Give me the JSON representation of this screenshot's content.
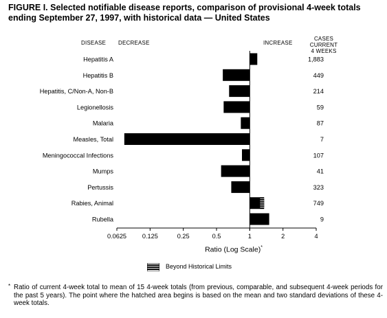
{
  "title_lines": [
    "FIGURE I. Selected notifiable disease reports, comparison of provisional 4-week totals",
    "ending September 27, 1997, with historical data — United States"
  ],
  "headers": {
    "disease": "DISEASE",
    "decrease": "DECREASE",
    "increase": "INCREASE",
    "cases": "CASES CURRENT",
    "cases2": "4 WEEKS"
  },
  "legend_label": "Beyond Historical Limits",
  "footnote_mark": "*",
  "footnote": "Ratio of current 4-week total to mean of 15 4-week totals (from previous, comparable, and subsequent 4-week periods for the past 5 years). The point where the hatched area begins is based on the mean and two standard deviations of these 4-week totals.",
  "colors": {
    "bar": "#000000",
    "background": "#ffffff"
  },
  "chart_data": {
    "type": "bar",
    "orientation": "horizontal",
    "x_scale": "log2",
    "xlabel": "Ratio (Log Scale)",
    "xlabel_mark": "*",
    "xlim": [
      0.0625,
      4
    ],
    "reference": 1,
    "x_ticks": [
      0.0625,
      0.125,
      0.25,
      0.5,
      1,
      2,
      4
    ],
    "x_tick_labels": [
      "0.0625",
      "0.125",
      "0.25",
      "0.5",
      "1",
      "2",
      "4"
    ],
    "categories": [
      "Hepatitis A",
      "Hepatitis B",
      "Hepatitis, C/Non-A, Non-B",
      "Legionellosis",
      "Malaria",
      "Measles, Total",
      "Meningococcal Infections",
      "Mumps",
      "Pertussis",
      "Rabies, Animal",
      "Rubella"
    ],
    "values": [
      1.17,
      0.57,
      0.65,
      0.58,
      0.83,
      0.073,
      0.85,
      0.55,
      0.68,
      1.35,
      1.5
    ],
    "beyond_historical_limits_from": [
      null,
      null,
      null,
      null,
      null,
      null,
      null,
      null,
      null,
      1.24,
      null
    ],
    "cases_current_4_weeks": [
      "1,883",
      "449",
      "214",
      "59",
      "87",
      "7",
      "107",
      "41",
      "323",
      "749",
      "9"
    ]
  }
}
